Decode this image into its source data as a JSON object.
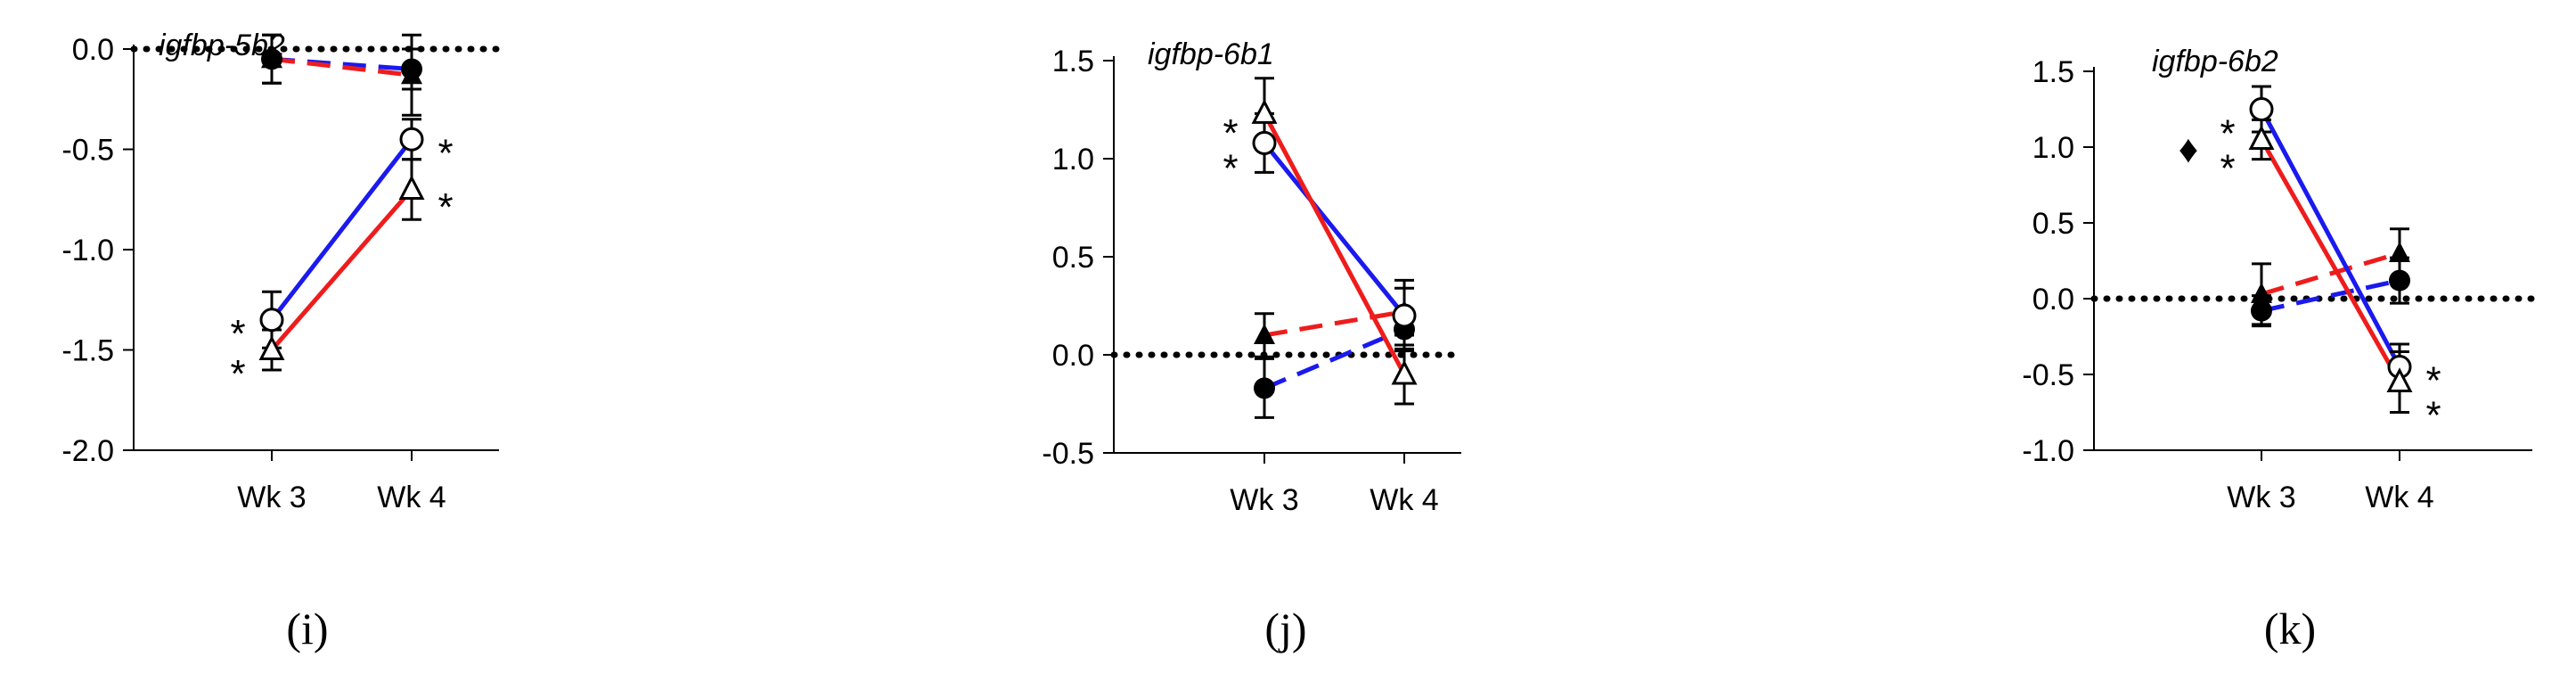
{
  "colors": {
    "red": "#ee1c1c",
    "blue": "#1a1aee",
    "black": "#000000"
  },
  "chart_data": [
    {
      "type": "line",
      "title": "igfbp-5b2",
      "panel_label": "(i)",
      "categories": [
        "Wk 3",
        "Wk 4"
      ],
      "ylim": [
        -2.0,
        0.0
      ],
      "yticks": [
        -2.0,
        -1.5,
        -1.0,
        -0.5,
        0.0
      ],
      "ytick_labels": [
        "-2.0",
        "-1.5",
        "-1.0",
        "-0.5",
        "0.0"
      ],
      "reference_line": 0,
      "series": [
        {
          "name": "solid circle",
          "marker": "circle-filled",
          "color": "blue",
          "dash": true,
          "values": [
            -0.05,
            -0.1
          ],
          "errors": [
            0.12,
            0.1
          ]
        },
        {
          "name": "solid triangle",
          "marker": "triangle-filled",
          "color": "red",
          "dash": true,
          "values": [
            -0.05,
            -0.13
          ],
          "errors": [
            0.12,
            0.2
          ]
        },
        {
          "name": "open circle",
          "marker": "circle-open",
          "color": "blue",
          "dash": false,
          "values": [
            -1.35,
            -0.45
          ],
          "errors": [
            0.14,
            0.1
          ]
        },
        {
          "name": "open triangle",
          "marker": "triangle-open",
          "color": "red",
          "dash": false,
          "values": [
            -1.5,
            -0.7
          ],
          "errors": [
            0.1,
            0.15
          ]
        }
      ],
      "annotations": [
        {
          "text": "*",
          "category": 0,
          "value": -1.35,
          "side": "left"
        },
        {
          "text": "*",
          "category": 0,
          "value": -1.55,
          "side": "left"
        },
        {
          "text": "*",
          "category": 1,
          "value": -0.45,
          "side": "right"
        },
        {
          "text": "*",
          "category": 1,
          "value": -0.72,
          "side": "right"
        }
      ]
    },
    {
      "type": "line",
      "title": "igfbp-6b1",
      "panel_label": "(j)",
      "categories": [
        "Wk 3",
        "Wk 4"
      ],
      "ylim": [
        -0.5,
        1.5
      ],
      "yticks": [
        -0.5,
        0.0,
        0.5,
        1.0,
        1.5
      ],
      "ytick_labels": [
        "-0.5",
        "0.0",
        "0.5",
        "1.0",
        "1.5"
      ],
      "reference_line": 0,
      "series": [
        {
          "name": "solid circle",
          "marker": "circle-filled",
          "color": "blue",
          "dash": true,
          "values": [
            -0.17,
            0.13
          ],
          "errors": [
            0.15,
            0.1
          ]
        },
        {
          "name": "solid triangle",
          "marker": "triangle-filled",
          "color": "red",
          "dash": true,
          "values": [
            0.1,
            0.22
          ],
          "errors": [
            0.11,
            0.12
          ]
        },
        {
          "name": "open circle",
          "marker": "circle-open",
          "color": "blue",
          "dash": false,
          "values": [
            1.08,
            0.2
          ],
          "errors": [
            0.15,
            0.18
          ]
        },
        {
          "name": "open triangle",
          "marker": "triangle-open",
          "color": "red",
          "dash": false,
          "values": [
            1.23,
            -0.1
          ],
          "errors": [
            0.18,
            0.15
          ]
        }
      ],
      "annotations": [
        {
          "text": "*",
          "category": 0,
          "value": 1.2,
          "side": "left"
        },
        {
          "text": "*",
          "category": 0,
          "value": 1.02,
          "side": "left"
        }
      ]
    },
    {
      "type": "line",
      "title": "igfbp-6b2",
      "panel_label": "(k)",
      "categories": [
        "Wk 3",
        "Wk 4"
      ],
      "ylim": [
        -1.0,
        1.5
      ],
      "yticks": [
        -1.0,
        -0.5,
        0.0,
        0.5,
        1.0,
        1.5
      ],
      "ytick_labels": [
        "-1.0",
        "-0.5",
        "0.0",
        "0.5",
        "1.0",
        "1.5"
      ],
      "reference_line": 0,
      "series": [
        {
          "name": "solid circle",
          "marker": "circle-filled",
          "color": "blue",
          "dash": true,
          "values": [
            -0.08,
            0.12
          ],
          "errors": [
            0.1,
            0.15
          ]
        },
        {
          "name": "solid triangle",
          "marker": "triangle-filled",
          "color": "red",
          "dash": true,
          "values": [
            0.03,
            0.3
          ],
          "errors": [
            0.2,
            0.16
          ]
        },
        {
          "name": "open circle",
          "marker": "circle-open",
          "color": "blue",
          "dash": false,
          "values": [
            1.25,
            -0.45
          ],
          "errors": [
            0.15,
            0.15
          ]
        },
        {
          "name": "open triangle",
          "marker": "triangle-open",
          "color": "red",
          "dash": false,
          "values": [
            1.05,
            -0.55
          ],
          "errors": [
            0.13,
            0.2
          ]
        }
      ],
      "annotations": [
        {
          "text": "*",
          "category": 0,
          "value": 1.18,
          "side": "left"
        },
        {
          "text": "*",
          "category": 0,
          "value": 0.95,
          "side": "left"
        },
        {
          "text": "♦",
          "category": 0,
          "value": 0.97,
          "side": "far-left"
        },
        {
          "text": "*",
          "category": 1,
          "value": -0.45,
          "side": "right"
        },
        {
          "text": "*",
          "category": 1,
          "value": -0.68,
          "side": "right"
        }
      ]
    }
  ]
}
